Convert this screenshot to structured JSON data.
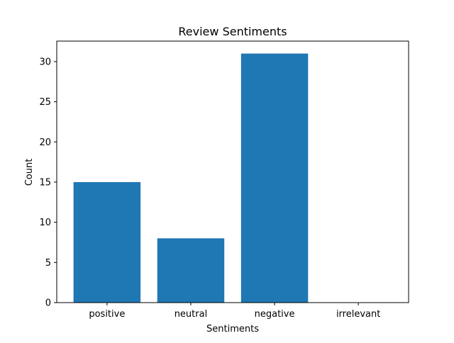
{
  "chart_data": {
    "type": "bar",
    "title": "Review Sentiments",
    "xlabel": "Sentiments",
    "ylabel": "Count",
    "categories": [
      "positive",
      "neutral",
      "negative",
      "irrelevant"
    ],
    "values": [
      15,
      8,
      31,
      0
    ],
    "ylim": [
      0,
      32.55
    ],
    "yticks": [
      0,
      5,
      10,
      15,
      20,
      25,
      30
    ],
    "bar_color": "#1f77b4",
    "grid": false,
    "legend": "none"
  }
}
